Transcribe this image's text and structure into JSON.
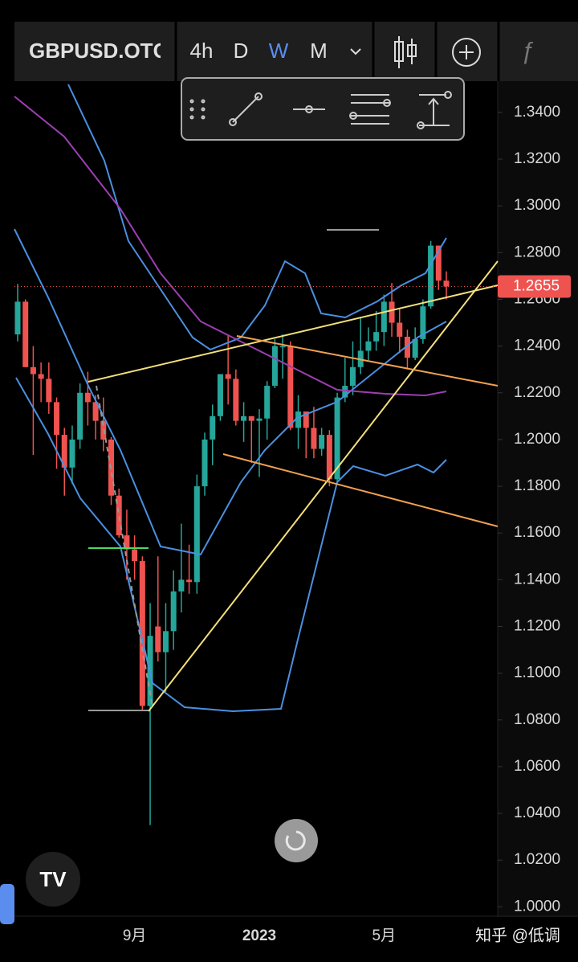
{
  "ui": {
    "symbol": "GBPUSD.OTC",
    "intervals": [
      "4h",
      "D",
      "W",
      "M"
    ],
    "watermark": "知乎 @低调"
  },
  "chart_data": {
    "type": "candlestick",
    "categories": [
      null,
      null,
      null,
      null,
      null,
      null,
      null,
      null,
      null,
      null,
      null,
      null,
      null,
      null,
      null,
      "9月",
      null,
      null,
      null,
      null,
      null,
      null,
      null,
      null,
      null,
      null,
      null,
      null,
      null,
      null,
      null,
      "2023",
      null,
      null,
      null,
      null,
      null,
      null,
      null,
      null,
      null,
      null,
      null,
      null,
      null,
      null,
      null,
      "5月",
      null,
      null,
      null,
      null,
      null,
      null,
      null,
      null
    ],
    "open": [
      1.245,
      1.259,
      1.231,
      1.228,
      1.226,
      1.216,
      1.202,
      1.188,
      1.2,
      1.22,
      1.216,
      1.208,
      1.2,
      1.176,
      1.159,
      1.153,
      1.148,
      1.086,
      1.12,
      1.109,
      1.118,
      1.135,
      1.14,
      1.139,
      1.18,
      1.2,
      1.21,
      1.228,
      1.226,
      1.208,
      1.21,
      1.208,
      1.209,
      1.223,
      1.24,
      1.24,
      1.205,
      1.212,
      1.205,
      1.196,
      1.202,
      1.183,
      1.218,
      1.223,
      1.231,
      1.238,
      1.242,
      1.246,
      1.259,
      1.25,
      1.244,
      1.235,
      1.243,
      1.257,
      1.283,
      1.268
    ],
    "high": [
      1.2666,
      1.26,
      1.24,
      1.233,
      1.233,
      1.218,
      1.205,
      1.206,
      1.224,
      1.229,
      1.219,
      1.218,
      1.201,
      1.179,
      1.17,
      1.159,
      1.15,
      1.13,
      1.15,
      1.13,
      1.144,
      1.164,
      1.155,
      1.185,
      1.203,
      1.215,
      1.228,
      1.2445,
      1.23,
      1.216,
      1.21,
      1.213,
      1.225,
      1.243,
      1.245,
      1.242,
      1.219,
      1.211,
      1.214,
      1.205,
      1.204,
      1.22,
      1.235,
      1.242,
      1.252,
      1.248,
      1.255,
      1.262,
      1.267,
      1.256,
      1.247,
      1.248,
      1.26,
      1.285,
      1.283,
      1.272
    ],
    "low": [
      1.242,
      1.231,
      1.1934,
      1.216,
      1.211,
      1.1875,
      1.176,
      1.181,
      1.196,
      1.206,
      1.2,
      1.195,
      1.172,
      1.158,
      1.14,
      1.14,
      1.084,
      1.035,
      1.105,
      1.092,
      1.11,
      1.126,
      1.134,
      1.134,
      1.176,
      1.189,
      1.208,
      1.215,
      1.206,
      1.199,
      1.19,
      1.184,
      1.2,
      1.222,
      1.226,
      1.204,
      1.196,
      1.192,
      1.192,
      1.193,
      1.18,
      1.182,
      1.216,
      1.219,
      1.228,
      1.234,
      1.238,
      1.24,
      1.244,
      1.237,
      1.23,
      1.234,
      1.241,
      1.256,
      1.264,
      1.26
    ],
    "close": [
      1.259,
      1.231,
      1.228,
      1.226,
      1.216,
      1.202,
      1.188,
      1.2,
      1.22,
      1.216,
      1.208,
      1.2,
      1.176,
      1.159,
      1.153,
      1.148,
      1.086,
      1.116,
      1.109,
      1.118,
      1.135,
      1.14,
      1.139,
      1.18,
      1.2,
      1.21,
      1.228,
      1.226,
      1.208,
      1.21,
      1.208,
      1.209,
      1.223,
      1.24,
      1.24,
      1.205,
      1.212,
      1.205,
      1.196,
      1.202,
      1.183,
      1.218,
      1.223,
      1.231,
      1.238,
      1.242,
      1.246,
      1.259,
      1.25,
      1.244,
      1.235,
      1.243,
      1.257,
      1.283,
      1.268,
      1.2655
    ],
    "up_color": "#26a69a",
    "down_color": "#ef5350",
    "last_price": 1.2655,
    "ylim": [
      0.996,
      1.352
    ],
    "yticks": [
      {
        "value": 1.34,
        "label": "1.3400"
      },
      {
        "value": 1.32,
        "label": "1.3200"
      },
      {
        "value": 1.3,
        "label": "1.3000"
      },
      {
        "value": 1.28,
        "label": "1.2800"
      },
      {
        "value": 1.26,
        "label": "1.2600"
      },
      {
        "value": 1.24,
        "label": "1.2400"
      },
      {
        "value": 1.22,
        "label": "1.2200"
      },
      {
        "value": 1.2,
        "label": "1.2000"
      },
      {
        "value": 1.18,
        "label": "1.1800"
      },
      {
        "value": 1.16,
        "label": "1.1600"
      },
      {
        "value": 1.14,
        "label": "1.1400"
      },
      {
        "value": 1.12,
        "label": "1.1200"
      },
      {
        "value": 1.1,
        "label": "1.1000"
      },
      {
        "value": 1.08,
        "label": "1.0800"
      },
      {
        "value": 1.06,
        "label": "1.0600"
      },
      {
        "value": 1.04,
        "label": "1.0400"
      },
      {
        "value": 1.02,
        "label": "1.0200"
      },
      {
        "value": 1.0,
        "label": "1.0000"
      }
    ]
  }
}
